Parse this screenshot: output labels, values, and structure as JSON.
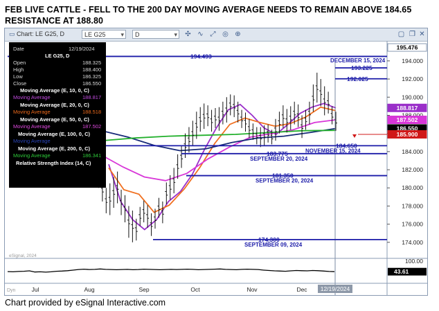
{
  "title_line1": "FEB LIVE CATTLE  -   FELL TO THE 200 DAY MOVING AVERAGE  NEEDS TO REMAIN ABOVE 184.65",
  "title_line2": "RESISTANCE AT 188.80",
  "credit": "Chart provided by eSignal Interactive.com",
  "toolbar": {
    "chart_label": "Chart: LE G25, D",
    "symbol": "LE G25",
    "interval": "D"
  },
  "infobox": {
    "date_label": "Date",
    "date_value": "12/19/2024",
    "symbol": "LE G25, D",
    "rows": [
      {
        "label": "Open",
        "value": "188.325"
      },
      {
        "label": "High",
        "value": "188.400"
      },
      {
        "label": "Low",
        "value": "186.325"
      },
      {
        "label": "Close",
        "value": "186.550"
      }
    ],
    "studies": [
      {
        "header": "Moving Average (E, 10, 0, C)",
        "label": "Moving Average",
        "value": "188.817",
        "color": "#b62fd6"
      },
      {
        "header": "Moving Average (E, 20, 0, C)",
        "label": "Moving Average",
        "value": "188.518",
        "color": "#ee6a1c"
      },
      {
        "header": "Moving Average (E, 50, 0, C)",
        "label": "Moving Average",
        "value": "187.502",
        "color": "#d43ad4"
      },
      {
        "header": "Moving Average (E, 100, 0, C)",
        "label": "Moving Average",
        "value": "",
        "color": "#1a2f7a"
      },
      {
        "header": "Moving Average (E, 200, 0, C)",
        "label": "Moving Average",
        "value": "186.341",
        "color": "#1eb52a"
      }
    ],
    "rsi_header": "Relative Strength Index (14, C)"
  },
  "chart_data": {
    "type": "candlestick",
    "title": "FEB LIVE CATTLE  -   FELL TO THE 200 DAY MOVING AVERAGE  NEEDS TO REMAIN ABOVE 184.65",
    "subtitle": "RESISTANCE AT 188.80",
    "x_ticks": [
      "Jul",
      "Aug",
      "Sep",
      "Oct",
      "Nov",
      "Dec",
      "12/19/2024"
    ],
    "y_ticks": [
      174.0,
      176.0,
      178.0,
      180.0,
      182.0,
      184.0,
      186.0,
      188.0,
      190.0,
      192.0,
      194.0
    ],
    "ylim": [
      173.3,
      195.9
    ],
    "price_series": [
      [
        180.5,
        182.2
      ],
      [
        180.0,
        181.8
      ],
      [
        178.5,
        181.0
      ],
      [
        177.2,
        180.0
      ],
      [
        177.0,
        180.5
      ],
      [
        177.8,
        181.2
      ],
      [
        178.3,
        181.8
      ],
      [
        177.0,
        179.8
      ],
      [
        176.2,
        179.2
      ],
      [
        174.5,
        178.0
      ],
      [
        174.0,
        177.5
      ],
      [
        174.2,
        176.6
      ],
      [
        175.8,
        177.9
      ],
      [
        176.2,
        178.6
      ],
      [
        175.6,
        178.1
      ],
      [
        174.7,
        177.2
      ],
      [
        175.5,
        177.7
      ],
      [
        176.7,
        178.9
      ],
      [
        176.1,
        178.5
      ],
      [
        178.2,
        180.6
      ],
      [
        178.7,
        181.4
      ],
      [
        179.4,
        182.2
      ],
      [
        181.0,
        183.7
      ],
      [
        182.2,
        184.6
      ],
      [
        183.3,
        186.0
      ],
      [
        183.9,
        186.7
      ],
      [
        184.6,
        187.4
      ],
      [
        185.4,
        188.4
      ],
      [
        186.2,
        188.9
      ],
      [
        186.5,
        189.3
      ],
      [
        186.8,
        189.1
      ],
      [
        186.2,
        188.6
      ],
      [
        186.6,
        188.8
      ],
      [
        186.3,
        188.9
      ],
      [
        187.0,
        189.5
      ],
      [
        187.2,
        190.0
      ],
      [
        188.0,
        190.3
      ],
      [
        187.8,
        190.2
      ],
      [
        187.2,
        189.5
      ],
      [
        186.6,
        188.6
      ],
      [
        186.2,
        188.3
      ],
      [
        185.5,
        187.6
      ],
      [
        185.3,
        187.1
      ],
      [
        184.8,
        186.7
      ],
      [
        184.5,
        186.7
      ],
      [
        184.7,
        186.9
      ],
      [
        185.0,
        187.0
      ],
      [
        184.8,
        186.4
      ],
      [
        185.2,
        187.6
      ],
      [
        186.0,
        188.4
      ],
      [
        186.6,
        189.1
      ],
      [
        186.1,
        188.7
      ],
      [
        186.4,
        189.0
      ],
      [
        187.0,
        189.5
      ],
      [
        186.7,
        189.2
      ],
      [
        185.5,
        188.0
      ],
      [
        186.4,
        188.6
      ],
      [
        187.0,
        189.5
      ],
      [
        188.4,
        191.4
      ],
      [
        189.4,
        192.7
      ],
      [
        189.0,
        192.0
      ],
      [
        188.0,
        191.2
      ],
      [
        188.2,
        190.6
      ],
      [
        187.0,
        189.0
      ],
      [
        186.3,
        188.4
      ]
    ],
    "series": [
      {
        "name": "Moving Average (E, 10, 0, C)",
        "color": "#9a2fc9",
        "values": [
          [
            182.6,
            181.4
          ],
          [
            178.5,
            180.6
          ],
          [
            176.5,
            178.5
          ],
          [
            175.4,
            176.8
          ],
          [
            176.5,
            176.5
          ],
          [
            178.5,
            177.5
          ],
          [
            179.6,
            180.2
          ],
          [
            181.5,
            182.8
          ],
          [
            184.2,
            185.3
          ],
          [
            186.6,
            187.8
          ],
          [
            188.6,
            189.4
          ],
          [
            189.2,
            188.5
          ],
          [
            188.0,
            187.0
          ],
          [
            186.6,
            186.2
          ],
          [
            185.9,
            186.4
          ],
          [
            187.0,
            187.8
          ],
          [
            188.2,
            188.2
          ],
          [
            188.9,
            189.5
          ],
          [
            189.3,
            189.0
          ],
          [
            188.817,
            188.817
          ]
        ]
      },
      {
        "name": "Moving Average (E, 20, 0, C)",
        "color": "#f07020",
        "values": [
          [
            182.2,
            180.8
          ],
          [
            179.8,
            180.1
          ],
          [
            179.3,
            177.9
          ],
          [
            177.3,
            177.1
          ],
          [
            178.1,
            178.9
          ],
          [
            179.9,
            180.9
          ],
          [
            182.2,
            183.3
          ],
          [
            184.9,
            185.9
          ],
          [
            187.0,
            187.6
          ],
          [
            187.7,
            187.4
          ],
          [
            187.2,
            186.9
          ],
          [
            186.8,
            186.8
          ],
          [
            187.1,
            187.4
          ],
          [
            187.8,
            188.2
          ],
          [
            188.9,
            188.7
          ],
          [
            188.518,
            188.518
          ]
        ]
      },
      {
        "name": "Moving Average (E, 50, 0, C)",
        "color": "#d836d8",
        "values": [
          [
            183.6,
            183.1
          ],
          [
            182.3,
            181.7
          ],
          [
            181.2,
            180.9
          ],
          [
            180.8,
            180.9
          ],
          [
            181.6,
            182.4
          ],
          [
            183.2,
            183.9
          ],
          [
            184.5,
            185.2
          ],
          [
            185.6,
            185.8
          ],
          [
            186.0,
            186.2
          ],
          [
            186.4,
            186.7
          ],
          [
            187.2,
            187.502
          ],
          [
            187.502,
            187.502
          ]
        ]
      },
      {
        "name": "Moving Average (E, 100, 0, C)",
        "color": "#172a78",
        "values": [
          [
            186.3,
            186.0
          ],
          [
            185.6,
            185.1
          ],
          [
            184.7,
            184.3
          ],
          [
            184.1,
            184.1
          ],
          [
            184.3,
            184.6
          ],
          [
            185.0,
            185.2
          ],
          [
            185.5,
            185.6
          ],
          [
            185.7,
            185.9
          ],
          [
            186.1,
            186.3
          ],
          [
            186.55,
            186.55
          ]
        ]
      },
      {
        "name": "Moving Average (E, 200, 0, C)",
        "color": "#22b02c",
        "values": [
          [
            185.2,
            185.3
          ],
          [
            185.5,
            185.6
          ],
          [
            185.7,
            185.7
          ],
          [
            185.8,
            185.8
          ],
          [
            185.9,
            186.0
          ],
          [
            186.1,
            186.2
          ],
          [
            186.3,
            186.341
          ],
          [
            186.341,
            186.341
          ]
        ]
      }
    ],
    "levels": [
      {
        "value": 194.493,
        "label": "194.493",
        "note": ""
      },
      {
        "value": 193.225,
        "label": "193.225",
        "note": "DECEMBER 15, 2024"
      },
      {
        "value": 192.025,
        "label": "192.025",
        "note": ""
      },
      {
        "value": 184.65,
        "label": "184.650",
        "note": "NOVEMBER 15, 2024"
      },
      {
        "value": 183.775,
        "label": "183.775",
        "note": "SEPTEMBER 20, 2024"
      },
      {
        "value": 181.35,
        "label": "181.350",
        "note": "SEPTEMBER 20, 2024"
      },
      {
        "value": 174.3,
        "label": "174.300",
        "note": "SEPTEMBER 09, 2024"
      }
    ],
    "right_axis_badges": [
      {
        "value": 195.476,
        "text": "195.476",
        "bg": "#ffffff",
        "fg": "#000000"
      },
      {
        "value": 188.817,
        "text": "188.817",
        "bg": "#9a2fc9",
        "fg": "#ffffff"
      },
      {
        "value": 187.502,
        "text": "187.502",
        "bg": "#d836d8",
        "fg": "#ffffff"
      },
      {
        "value": 186.55,
        "text": "186.550",
        "bg": "#000000",
        "fg": "#ffffff"
      },
      {
        "value": 185.9,
        "text": "185.900",
        "bg": "#d01818",
        "fg": "#ffffff"
      }
    ],
    "watermark": "eSignal, 2024",
    "rsi": {
      "ticks": [
        "100.00",
        "50.00"
      ],
      "ylim": [
        0,
        100
      ],
      "value_label": "43.61",
      "values": [
        44,
        43,
        45,
        46,
        48,
        42,
        43,
        41,
        43,
        46,
        47,
        49,
        52,
        55,
        57,
        55,
        56,
        58,
        56,
        55,
        54,
        55,
        56,
        54,
        55,
        57,
        56,
        55,
        54,
        55,
        56,
        55,
        56,
        57,
        56,
        54,
        55,
        56,
        57,
        58,
        56,
        55,
        54,
        56,
        57,
        56,
        55,
        52,
        50,
        48,
        47,
        46,
        48,
        50,
        49,
        48,
        50,
        49,
        47,
        45,
        43.61
      ]
    },
    "date_badge": "12/19/2024",
    "corner_label": "Dyn"
  }
}
